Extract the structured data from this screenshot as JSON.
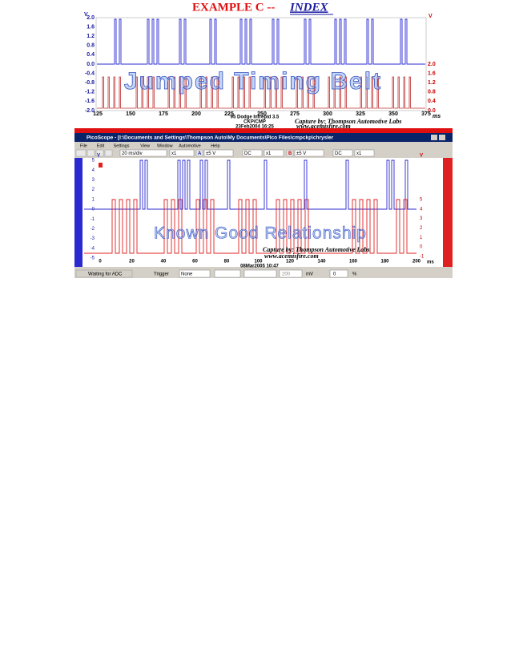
{
  "header": {
    "title": "EXAMPLE C --",
    "link": "INDEX"
  },
  "scope1": {
    "left_unit": "V",
    "left_ticks": [
      "2.0",
      "1.6",
      "1.2",
      "0.8",
      "0.4",
      "0.0",
      "-0.4",
      "-0.8",
      "-1.2",
      "-1.6",
      "-2.0"
    ],
    "right_unit": "V",
    "right_ticks": [
      "2.0",
      "1.6",
      "1.2",
      "0.8",
      "0.4",
      "0.0"
    ],
    "x_ticks": [
      "125",
      "150",
      "175",
      "200",
      "225",
      "250",
      "275",
      "300",
      "325",
      "350",
      "375"
    ],
    "x_unit": "ms",
    "watermark": "Jumped Timing Belt",
    "vehicle": "95 Dodge Intrepid 3.5",
    "signal": "CKP/CMP",
    "date": "23Feb2004  16:25",
    "capture": "Capture by: Thompson Automotive Labs",
    "website": "www.acemisfire.com"
  },
  "scope2": {
    "window_title": "PicoScope - [I:\\Documents and Settings\\Thompson Auto\\My Documents\\Pico Files\\cmpckp\\chrysler",
    "menu": [
      "File",
      "Edit",
      "Settings",
      "View",
      "Window",
      "Automotive",
      "Help"
    ],
    "toolbar": {
      "timebase": "20 ms/div",
      "zoom": "x1",
      "channel_a": "A",
      "range_a": "±5 V",
      "coupling_a": "DC",
      "mult_a": "x1",
      "channel_b": "B",
      "range_b": "±5 V",
      "coupling_b": "DC",
      "mult_b": "x1"
    },
    "left_unit": "V",
    "left_ticks": [
      "5",
      "4",
      "3",
      "2",
      "1",
      "0",
      "-1",
      "-2",
      "-3",
      "-4",
      "-5"
    ],
    "right_unit": "V",
    "right_ticks": [
      "5",
      "4",
      "3",
      "2",
      "1",
      "0",
      "-1"
    ],
    "x_ticks": [
      "0",
      "20",
      "40",
      "60",
      "80",
      "100",
      "120",
      "140",
      "160",
      "180",
      "200"
    ],
    "x_unit": "ms",
    "watermark": "Known Good Relationship",
    "capture": "Capture by: Thompson Automotive Labs",
    "website": "www.acemisfire.com",
    "date": "08Mar2005  10:47",
    "status": {
      "state": "Waiting for ADC",
      "trigger_label": "Trigger",
      "trigger_mode": "None",
      "level": "200",
      "level_unit": "mV",
      "delay": "0",
      "delay_unit": "%"
    }
  }
}
